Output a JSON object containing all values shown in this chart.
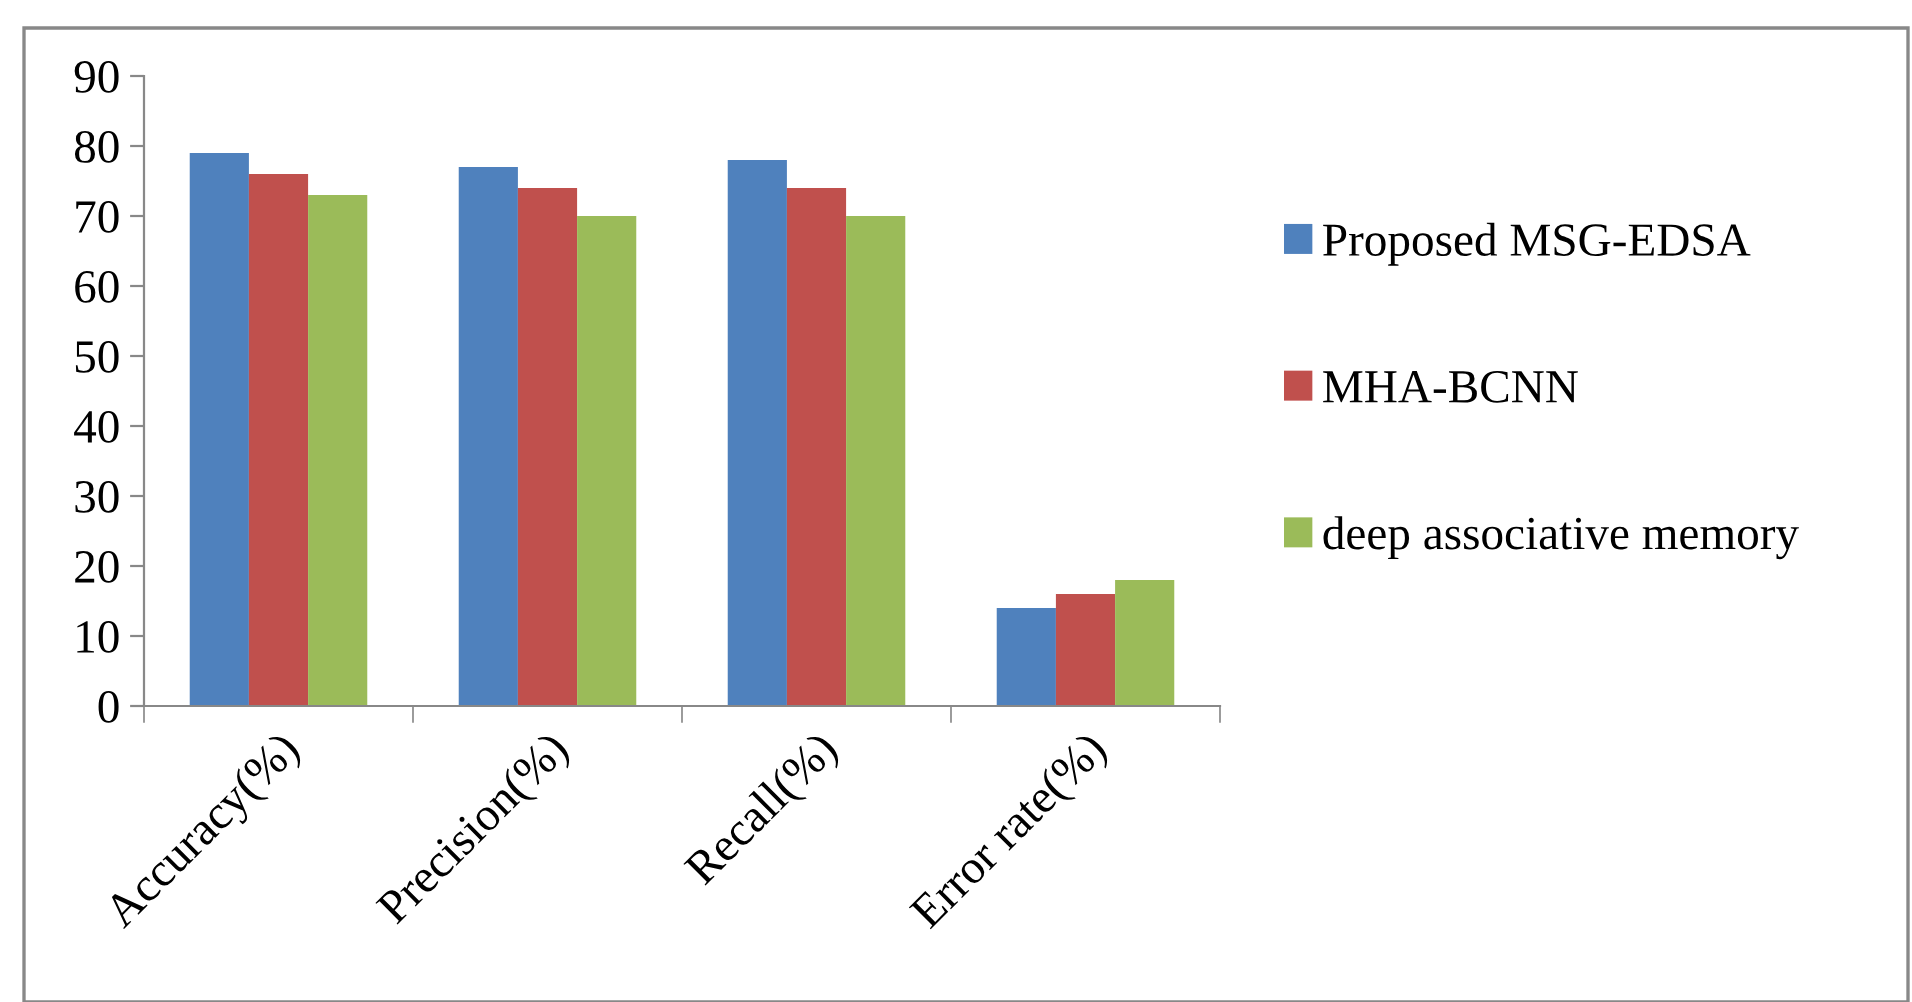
{
  "chart_data": {
    "type": "bar",
    "categories": [
      "Accuracy(%)",
      "Precision(%)",
      "Recall(%)",
      "Error rate(%)"
    ],
    "series": [
      {
        "name": "Proposed MSG-EDSA",
        "color": "#4f81bd",
        "values": [
          79,
          77,
          78,
          14
        ]
      },
      {
        "name": "MHA-BCNN",
        "color": "#c0504d",
        "values": [
          76,
          74,
          74,
          16
        ]
      },
      {
        "name": "deep associative memory",
        "color": "#9bbb59",
        "values": [
          73,
          70,
          70,
          18
        ]
      }
    ],
    "ylim": [
      0,
      90
    ],
    "yticks": [
      0,
      10,
      20,
      30,
      40,
      50,
      60,
      70,
      80,
      90
    ],
    "grid": false,
    "legend": "right"
  }
}
